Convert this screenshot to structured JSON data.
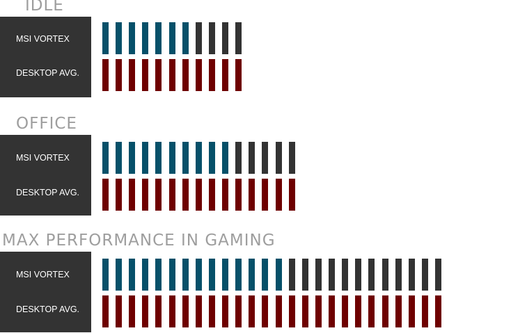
{
  "chart_data": {
    "type": "bar",
    "colors": {
      "highlight": "#065069",
      "remainder": "#333333",
      "reference": "#6e0000"
    },
    "groups": [
      {
        "title": "IDLE",
        "series": [
          {
            "name": "MSI VORTEX",
            "filled": 7,
            "total": 11
          },
          {
            "name": "DESKTOP AVG.",
            "filled": 11,
            "total": 11
          }
        ]
      },
      {
        "title": "OFFICE",
        "series": [
          {
            "name": "MSI VORTEX",
            "filled": 10,
            "total": 15
          },
          {
            "name": "DESKTOP AVG.",
            "filled": 15,
            "total": 15
          }
        ]
      },
      {
        "title": "MAX PERFORMANCE IN GAMING",
        "series": [
          {
            "name": "MSI VORTEX",
            "filled": 14,
            "total": 26
          },
          {
            "name": "DESKTOP AVG.",
            "filled": 26,
            "total": 26
          }
        ]
      }
    ]
  }
}
